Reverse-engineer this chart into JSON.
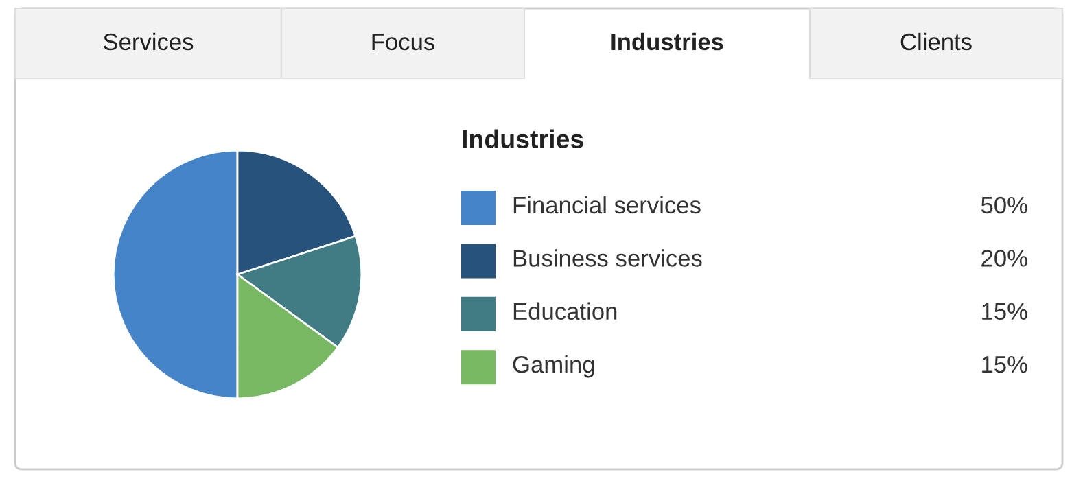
{
  "chart_data": {
    "type": "pie",
    "title": "Industries",
    "categories": [
      "Financial services",
      "Business services",
      "Education",
      "Gaming"
    ],
    "values": [
      50,
      20,
      15,
      15
    ],
    "colors": [
      "#4584c8",
      "#26527c",
      "#417b84",
      "#79b862"
    ],
    "value_labels": [
      "50%",
      "20%",
      "15%",
      "15%"
    ],
    "legend": "right",
    "annotations": [
      "Services",
      "Focus",
      "Industries",
      "Clients"
    ]
  }
}
